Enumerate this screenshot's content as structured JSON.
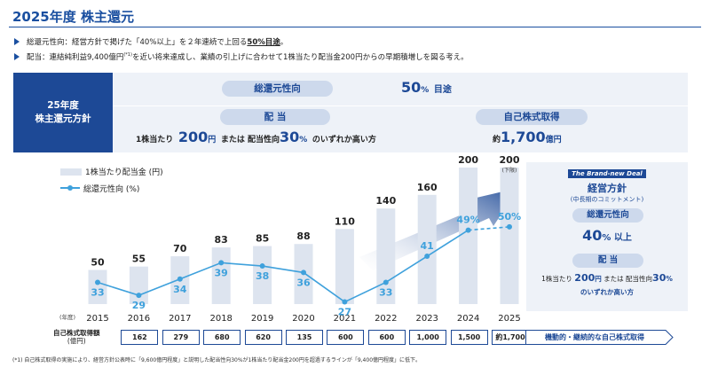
{
  "page": {
    "title": "2025年度 株主還元",
    "bullets": [
      {
        "prefix": "総還元性向：経営方針で掲げた「40%以上」を２年連続で上回る",
        "emph": "50%目途",
        "suffix": "。"
      },
      {
        "prefix": "配当：連結純利益9,400億円",
        "sup": "(*1)",
        "suffix": "を近い将来達成し、業績の引上げに合わせて1株当たり配当金200円からの早期積増しを図る考え。"
      }
    ]
  },
  "policy": {
    "head_line1": "25年度",
    "head_line2": "株主還元方針",
    "payout_label": "総還元性向",
    "payout_value": "50",
    "payout_pct": "%",
    "payout_suffix": "目途",
    "dividend_label": "配 当",
    "dividend_pre": "1株当たり",
    "dividend_amount": "200",
    "dividend_unit": "円",
    "dividend_mid": "または 配当性向",
    "dividend_ratio": "30",
    "dividend_ratio_unit": "%",
    "dividend_post": "のいずれか高い方",
    "buyback_label": "自己株式取得",
    "buyback_pre": "約",
    "buyback_amount": "1,700",
    "buyback_unit": "億円"
  },
  "legend": {
    "bar": "1株当たり配当金 (円)",
    "line": "総還元性向 (%)"
  },
  "side_panel": {
    "badge": "The Brand-new Deal",
    "title": "経営方針",
    "subtitle": "(中長期のコミットメント)",
    "payout_label": "総還元性向",
    "payout_value": "40",
    "payout_unit": "% 以上",
    "dividend_label": "配 当",
    "dividend_line1_pre": "1株当たり",
    "dividend_amount": "200",
    "dividend_unit": "円",
    "dividend_mid": "または 配当性向",
    "dividend_ratio": "30",
    "dividend_ratio_unit": "%",
    "dividend_line2": "のいずれか高い方"
  },
  "chart_data": {
    "type": "bar",
    "year_unit_label": "(年度)",
    "categories": [
      "2015",
      "2016",
      "2017",
      "2018",
      "2019",
      "2020",
      "2021",
      "2022",
      "2023",
      "2024",
      "2025"
    ],
    "series": [
      {
        "name": "1株当たり配当金 (円)",
        "type": "bar",
        "values": [
          50,
          55,
          70,
          83,
          85,
          88,
          110,
          140,
          160,
          200,
          200
        ]
      },
      {
        "name": "総還元性向 (%)",
        "type": "line",
        "values": [
          33,
          29,
          34,
          39,
          38,
          36,
          27,
          33,
          41,
          49,
          50
        ]
      }
    ],
    "bar_labels": [
      "50",
      "55",
      "70",
      "83",
      "85",
      "88",
      "110",
      "140",
      "160",
      "200",
      "200"
    ],
    "line_labels": [
      "33",
      "29",
      "34",
      "39",
      "38",
      "36",
      "27",
      "33",
      "41",
      "49%",
      "50%"
    ],
    "last_bar_note": "(下限)",
    "last_line_dashed": true,
    "colors": {
      "bar": "#dde4ef",
      "line": "#3fa1dc",
      "accent": "#1d4996"
    }
  },
  "buyback_row": {
    "label_line1": "自己株式取得額",
    "label_line2": "(億円)",
    "values": [
      "162",
      "279",
      "680",
      "620",
      "135",
      "600",
      "600",
      "1,000",
      "1,500",
      "約1,700"
    ],
    "arrow_text": "機動的・継続的な自己株式取得"
  },
  "footnote": "(*1) 自己株式取得の実施により、経営方針公表時に「9,600億円程度」と説明した配当性向30%が1株当たり配当金200円を超過するラインが「9,400億円程度」に低下。"
}
